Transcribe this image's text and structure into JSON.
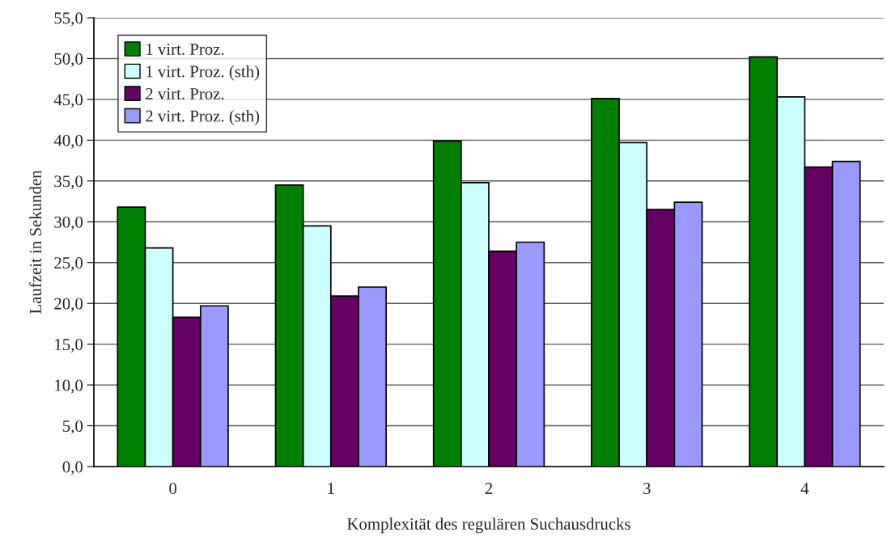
{
  "chart_data": {
    "type": "bar",
    "xlabel": "Komplexität des regulären Suchausdrucks",
    "ylabel": "Laufzeit in Sekunden",
    "categories": [
      "0",
      "1",
      "2",
      "3",
      "4"
    ],
    "series": [
      {
        "name": "1 virt. Proz.",
        "color": "#008000",
        "values": [
          31.8,
          34.5,
          39.9,
          45.1,
          50.2
        ]
      },
      {
        "name": "1 virt. Proz. (sth)",
        "color": "#ccffff",
        "values": [
          26.8,
          29.5,
          34.8,
          39.7,
          45.3
        ]
      },
      {
        "name": "2 virt. Proz.",
        "color": "#660066",
        "values": [
          18.3,
          20.9,
          26.4,
          31.5,
          36.7
        ]
      },
      {
        "name": "2 virt. Proz. (sth)",
        "color": "#9999ff",
        "values": [
          19.7,
          22.0,
          27.5,
          32.4,
          37.4
        ]
      }
    ],
    "ylim": [
      0,
      55
    ],
    "yticks": [
      {
        "value": 0,
        "label": "0,0"
      },
      {
        "value": 5,
        "label": "5,0"
      },
      {
        "value": 10,
        "label": "10,0"
      },
      {
        "value": 15,
        "label": "15,0"
      },
      {
        "value": 20,
        "label": "20,0"
      },
      {
        "value": 25,
        "label": "25,0"
      },
      {
        "value": 30,
        "label": "30,0"
      },
      {
        "value": 35,
        "label": "35,0"
      },
      {
        "value": 40,
        "label": "40,0"
      },
      {
        "value": 45,
        "label": "45,0"
      },
      {
        "value": 50,
        "label": "50,0"
      },
      {
        "value": 55,
        "label": "55,0"
      }
    ],
    "grid": "y",
    "legend": "top left"
  }
}
